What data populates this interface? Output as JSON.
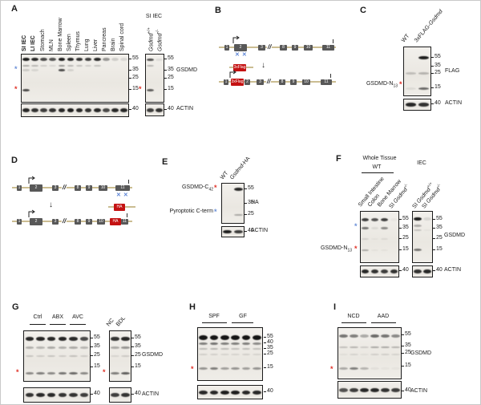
{
  "figure": {
    "ast": "*",
    "panels": {
      "A": {
        "letter": "A",
        "lanes": [
          "**SI IEC**",
          "**LI IEC**",
          "Stomach",
          "MLN",
          "Bone Marrow",
          "Spleen",
          "Thymus",
          "Lung",
          "Liver",
          "Pancreas",
          "Brain",
          "Spinal cord"
        ],
        "markers": [
          "55",
          "35",
          "25",
          "15"
        ],
        "actin_marker": "40",
        "small_header": "SI IEC",
        "small_lanes": [
          "_Gsdmd_^+/+^",
          "_Gsdmd_^-/-^"
        ],
        "small_markers": [
          "55",
          "35",
          "25",
          "15"
        ],
        "small_actin_marker": "40",
        "blot_label": "GSDMD",
        "actin_label": "ACTIN"
      },
      "B": {
        "letter": "B",
        "exons": [
          "1",
          "2",
          "3",
          "8",
          "9",
          "10",
          "11"
        ],
        "tag": "3xFlag"
      },
      "C": {
        "letter": "C",
        "lanes": [
          "WT",
          "3xFLAG-_Gsdmd_"
        ],
        "left_label": "GSDMD-N~13~",
        "markers": [
          "55",
          "35",
          "25",
          "15"
        ],
        "actin_marker": "40",
        "blot_label": "FLAG",
        "actin_label": "ACTIN"
      },
      "D": {
        "letter": "D",
        "exons": [
          "1",
          "2",
          "3",
          "8",
          "9",
          "10",
          "11"
        ],
        "tag": "HA"
      },
      "E": {
        "letter": "E",
        "lanes": [
          "WT",
          "_Gsdmd_-HA"
        ],
        "left_label_1": "GSDMD-C~42~",
        "left_label_2": "Pyroptotic C-term",
        "markers": [
          "55",
          "35",
          "25"
        ],
        "actin_marker": "40",
        "blot_label": "HA",
        "actin_label": "ACTIN"
      },
      "F": {
        "letter": "F",
        "header_1": "Whole Tissue",
        "header_1_sub": "WT",
        "header_2": "IEC",
        "lanes_1": [
          "Small Intestine",
          "Colon",
          "Bone Marrow",
          "SI _Gsdmd_^-/-^"
        ],
        "lanes_2": [
          "SI _Gsdmd_^+/+^",
          "SI _Gsdmd_^-/-^"
        ],
        "left_label": "GSDMD-N~13~",
        "markers_1": [
          "55",
          "35",
          "25",
          "15"
        ],
        "markers_2": [
          "55",
          "35",
          "25",
          "15"
        ],
        "actin_marker_1": "40",
        "actin_marker_2": "40",
        "blot_label": "GSDMD",
        "actin_label": "ACTIN"
      },
      "G": {
        "letter": "G",
        "groups": [
          "Ctrl",
          "ABX",
          "AVC"
        ],
        "lanes_2": [
          "NC",
          "BDL"
        ],
        "markers_1": [
          "55",
          "35",
          "25",
          "15"
        ],
        "markers_2": [
          "55",
          "35",
          "25",
          "15"
        ],
        "actin_marker_1": "40",
        "actin_marker_2": "40",
        "blot_label": "GSDMD",
        "actin_label": "ACTIN"
      },
      "H": {
        "letter": "H",
        "groups": [
          "SPF",
          "GF"
        ],
        "markers": [
          "55",
          "40",
          "35",
          "25",
          "15"
        ],
        "actin_marker": "40"
      },
      "I": {
        "letter": "I",
        "groups": [
          "NCD",
          "AAD"
        ],
        "markers": [
          "55",
          "35",
          "25",
          "15"
        ],
        "actin_marker": "40",
        "blot_label": "GSDMD",
        "actin_label": "ACTIN"
      }
    }
  },
  "blot_data": {
    "a_main": {
      "lanes": 12,
      "rows": [
        {
          "fy": 0.11,
          "h": 4,
          "i": [
            0.95,
            0.9,
            0.75,
            0.7,
            0.95,
            0.9,
            0.85,
            0.8,
            0.9,
            0.4,
            0.15,
            0.1
          ]
        },
        {
          "fy": 0.24,
          "h": 2.5,
          "i": [
            0.3,
            0.25,
            0.15,
            0.1,
            0.4,
            0.25,
            0.2,
            0.15,
            0.2,
            0,
            0,
            0
          ]
        },
        {
          "fy": 0.33,
          "h": 2.5,
          "i": [
            0.15,
            0.1,
            0,
            0,
            0.75,
            0.12,
            0,
            0,
            0,
            0,
            0,
            0
          ]
        },
        {
          "fy": 0.75,
          "h": 3,
          "i": [
            0.75,
            0,
            0,
            0,
            0,
            0,
            0,
            0,
            0,
            0,
            0,
            0
          ]
        }
      ]
    },
    "a_actin": {
      "lanes": 12,
      "rows": [
        {
          "fy": 0.5,
          "h": 5,
          "i": [
            0.9,
            0.85,
            0.8,
            0.85,
            0.9,
            0.95,
            0.9,
            0.85,
            0.9,
            0.75,
            0.9,
            0.9
          ]
        }
      ]
    },
    "a_small": {
      "lanes": 2,
      "rows": [
        {
          "fy": 0.11,
          "h": 3.5,
          "i": [
            0.7,
            0.08
          ]
        },
        {
          "fy": 0.24,
          "h": 2,
          "i": [
            0.25,
            0
          ]
        },
        {
          "fy": 0.75,
          "h": 3,
          "i": [
            0.65,
            0
          ]
        }
      ]
    },
    "a_small_actin": {
      "lanes": 2,
      "rows": [
        {
          "fy": 0.5,
          "h": 5,
          "i": [
            0.8,
            0.85
          ]
        }
      ]
    },
    "c_main": {
      "lanes": 2,
      "rows": [
        {
          "fy": 0.22,
          "h": 4.5,
          "i": [
            0,
            0.95
          ]
        },
        {
          "fy": 0.54,
          "h": 2.5,
          "i": [
            0.2,
            0.25
          ]
        },
        {
          "fy": 0.85,
          "h": 3,
          "i": [
            0.08,
            0.6
          ]
        }
      ]
    },
    "c_actin": {
      "lanes": 2,
      "rows": [
        {
          "fy": 0.5,
          "h": 4.5,
          "i": [
            0.9,
            0.85
          ]
        }
      ]
    },
    "e_main": {
      "lanes": 2,
      "rows": [
        {
          "fy": 0.15,
          "h": 4,
          "i": [
            0,
            0.9
          ]
        },
        {
          "fy": 0.8,
          "h": 2.5,
          "i": [
            0,
            0.3
          ]
        }
      ]
    },
    "e_actin": {
      "lanes": 2,
      "rows": [
        {
          "fy": 0.5,
          "h": 4.5,
          "i": [
            0.95,
            0.8
          ]
        }
      ]
    },
    "f_main1": {
      "lanes": 4,
      "rows": [
        {
          "fy": 0.16,
          "h": 4,
          "i": [
            0.8,
            0.7,
            0.8,
            0.03
          ]
        },
        {
          "fy": 0.33,
          "h": 3,
          "i": [
            0.55,
            0.08,
            0.45,
            0
          ]
        },
        {
          "fy": 0.54,
          "h": 2,
          "i": [
            0.12,
            0.04,
            0.08,
            0
          ]
        },
        {
          "fy": 0.76,
          "h": 2.5,
          "i": [
            0.3,
            0.04,
            0.04,
            0
          ]
        }
      ]
    },
    "f_actin1": {
      "lanes": 4,
      "rows": [
        {
          "fy": 0.5,
          "h": 5,
          "i": [
            0.9,
            0.85,
            0.8,
            0.85
          ]
        }
      ]
    },
    "f_main2": {
      "lanes": 2,
      "rows": [
        {
          "fy": 0.14,
          "h": 4.5,
          "i": [
            0.95,
            0.1
          ]
        },
        {
          "fy": 0.28,
          "h": 3,
          "i": [
            0.3,
            0
          ]
        },
        {
          "fy": 0.36,
          "h": 2,
          "i": [
            0.2,
            0.04
          ]
        },
        {
          "fy": 0.76,
          "h": 3,
          "i": [
            0.55,
            0
          ]
        }
      ]
    },
    "f_actin2": {
      "lanes": 2,
      "rows": [
        {
          "fy": 0.5,
          "h": 5,
          "i": [
            0.85,
            0.9
          ]
        }
      ]
    },
    "g_main1": {
      "lanes": 6,
      "rows": [
        {
          "fy": 0.15,
          "h": 4.5,
          "i": [
            0.9,
            0.92,
            0.9,
            0.92,
            0.9,
            0.75
          ]
        },
        {
          "fy": 0.33,
          "h": 2.5,
          "i": [
            0.28,
            0.25,
            0.3,
            0.28,
            0.3,
            0.25
          ]
        },
        {
          "fy": 0.5,
          "h": 2,
          "i": [
            0.18,
            0.15,
            0.18,
            0.15,
            0.2,
            0.15
          ]
        },
        {
          "fy": 0.84,
          "h": 3,
          "i": [
            0.45,
            0.5,
            0.45,
            0.55,
            0.6,
            0.45
          ]
        }
      ]
    },
    "g_actin1": {
      "lanes": 6,
      "rows": [
        {
          "fy": 0.5,
          "h": 5,
          "i": [
            0.85,
            0.9,
            0.9,
            0.85,
            0.85,
            0.8
          ]
        }
      ]
    },
    "g_main2": {
      "lanes": 2,
      "rows": [
        {
          "fy": 0.15,
          "h": 4.5,
          "i": [
            0.85,
            0.9
          ]
        },
        {
          "fy": 0.33,
          "h": 2.5,
          "i": [
            0.3,
            0.4
          ]
        },
        {
          "fy": 0.5,
          "h": 2,
          "i": [
            0.1,
            0.15
          ]
        },
        {
          "fy": 0.84,
          "h": 3,
          "i": [
            0.5,
            0.65
          ]
        }
      ]
    },
    "g_actin2": {
      "lanes": 2,
      "rows": [
        {
          "fy": 0.5,
          "h": 5,
          "i": [
            0.8,
            0.85
          ]
        }
      ]
    },
    "h_main": {
      "lanes": 6,
      "rows": [
        {
          "fy": 0.18,
          "h": 6,
          "i": [
            1,
            1,
            1,
            1,
            1,
            1
          ]
        },
        {
          "fy": 0.3,
          "h": 3,
          "i": [
            0.5,
            0.55,
            0.5,
            0.5,
            0.5,
            0.45
          ]
        },
        {
          "fy": 0.4,
          "h": 2.5,
          "i": [
            0.22,
            0.25,
            0.22,
            0.2,
            0.22,
            0.2
          ]
        },
        {
          "fy": 0.5,
          "h": 2,
          "i": [
            0.12,
            0.12,
            0.1,
            0.1,
            0.12,
            0.1
          ]
        },
        {
          "fy": 0.78,
          "h": 3,
          "i": [
            0.4,
            0.5,
            0.35,
            0.4,
            0.35,
            0.4
          ]
        }
      ]
    },
    "h_actin": {
      "lanes": 6,
      "rows": [
        {
          "fy": 0.5,
          "h": 5,
          "i": [
            0.9,
            0.9,
            0.95,
            0.95,
            0.9,
            0.9
          ]
        }
      ]
    },
    "i_main": {
      "lanes": 6,
      "rows": [
        {
          "fy": 0.16,
          "h": 4,
          "i": [
            0.55,
            0.5,
            0.3,
            0.6,
            0.55,
            0.45
          ]
        },
        {
          "fy": 0.38,
          "h": 2.5,
          "i": [
            0.2,
            0.25,
            0.15,
            0.3,
            0.3,
            0.25
          ]
        },
        {
          "fy": 0.52,
          "h": 2,
          "i": [
            0.05,
            0.1,
            0.05,
            0.12,
            0.12,
            0.1
          ]
        },
        {
          "fy": 0.8,
          "h": 3,
          "i": [
            0.3,
            0.5,
            0.25,
            0.05,
            0.03,
            0.03
          ]
        }
      ]
    },
    "i_actin": {
      "lanes": 6,
      "rows": [
        {
          "fy": 0.5,
          "h": 5,
          "i": [
            0.7,
            0.8,
            0.9,
            0.9,
            0.85,
            0.8
          ]
        }
      ]
    }
  }
}
